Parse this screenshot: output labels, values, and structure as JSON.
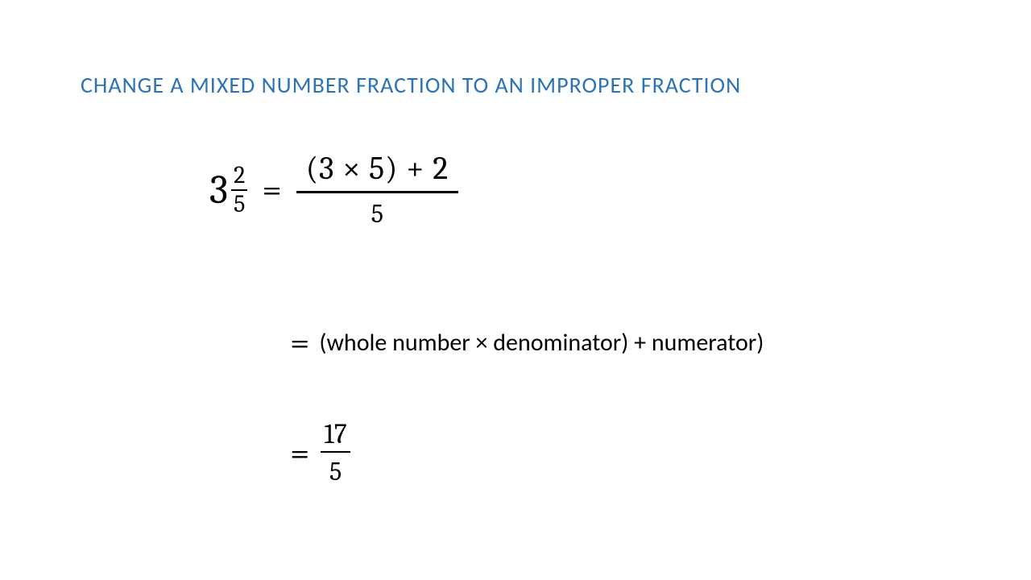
{
  "title": {
    "text": "CHANGE A MIXED NUMBER FRACTION TO AN IMPROPER FRACTION",
    "color": "#2E74B5",
    "fontsize": 28
  },
  "step1": {
    "mixed": {
      "whole": "3",
      "numerator": "2",
      "denominator": "5"
    },
    "equals": "=",
    "expansion": {
      "numerator": "(3 × 5) + 2",
      "denominator": "5"
    }
  },
  "step2": {
    "equals": "=",
    "formula": "(whole number × denominator) + numerator)"
  },
  "step3": {
    "equals": "=",
    "result": {
      "numerator": "17",
      "denominator": "5"
    }
  },
  "colors": {
    "background": "#ffffff",
    "text": "#000000",
    "title": "#2E74B5"
  }
}
